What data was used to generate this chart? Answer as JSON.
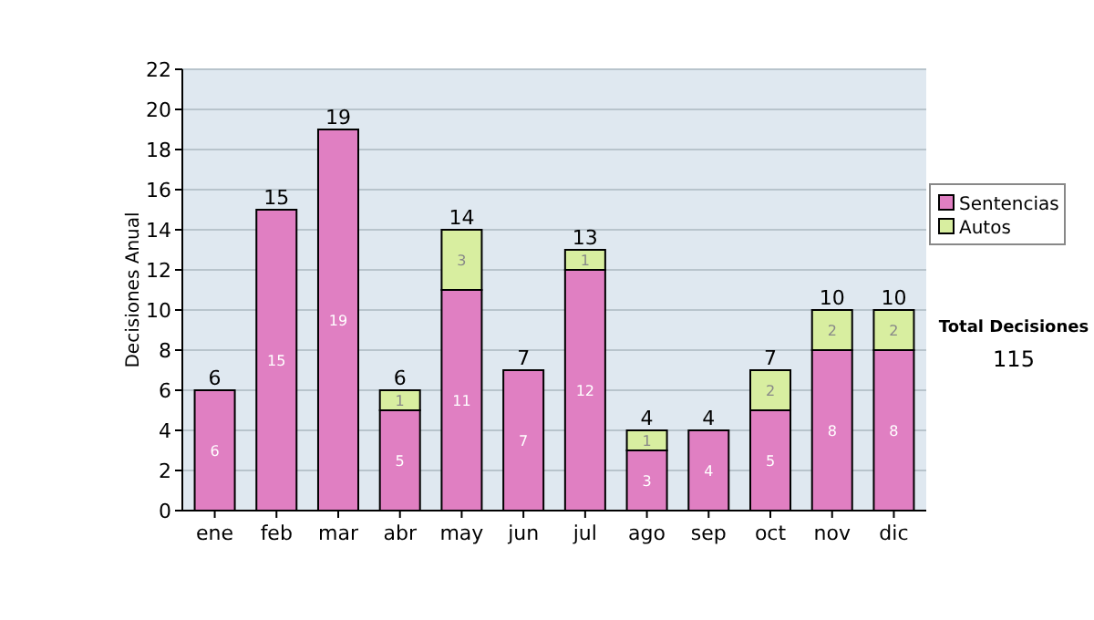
{
  "chart_data": {
    "type": "bar",
    "stacked": true,
    "ylabel": "Decisiones Anual",
    "categories": [
      "ene",
      "feb",
      "mar",
      "abr",
      "may",
      "jun",
      "jul",
      "ago",
      "sep",
      "oct",
      "nov",
      "dic"
    ],
    "series": [
      {
        "name": "Sentencias",
        "color": "#e07fc2",
        "values": [
          6,
          15,
          19,
          5,
          11,
          7,
          12,
          3,
          4,
          5,
          8,
          8
        ],
        "value_labels": [
          "6",
          "15",
          "19",
          "5",
          "11",
          "7",
          "12",
          "3",
          "4",
          "5",
          "8",
          "8"
        ]
      },
      {
        "name": "Autos",
        "color": "#d8eea0",
        "values": [
          0,
          0,
          0,
          1,
          3,
          0,
          1,
          1,
          0,
          2,
          2,
          2
        ],
        "value_labels": [
          null,
          null,
          null,
          "1",
          "3",
          null,
          "1",
          "1",
          null,
          "2",
          "2",
          "2"
        ]
      }
    ],
    "totals": [
      "6",
      "15",
      "19",
      "6",
      "14",
      "7",
      "13",
      "4",
      "4",
      "7",
      "10",
      "10"
    ],
    "ylim": [
      0,
      22
    ],
    "yticks": [
      0,
      2,
      4,
      6,
      8,
      10,
      12,
      14,
      16,
      18,
      20,
      22
    ],
    "grid": "y",
    "legend": "right",
    "annotations": [
      "Total Decisiones",
      "115"
    ]
  }
}
